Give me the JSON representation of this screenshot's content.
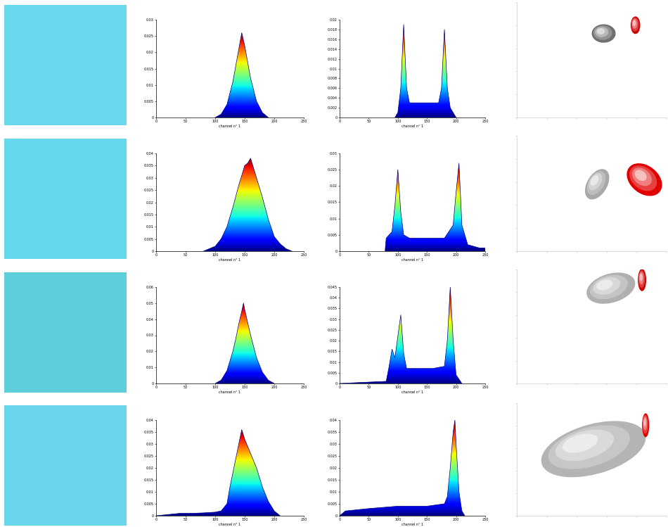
{
  "chart_data": [
    {
      "type": "image",
      "color": "#68d8ec"
    },
    {
      "type": "area",
      "x_label": "channel n° 1",
      "xlim": [
        0,
        250
      ],
      "xticks": [
        0,
        50,
        100,
        150,
        200,
        250
      ],
      "ylim": [
        0,
        0.03
      ],
      "yticks": [
        0,
        0.005,
        0.01,
        0.015,
        0.02,
        0.025,
        0.03
      ],
      "x": [
        100,
        110,
        120,
        130,
        135,
        140,
        145,
        150,
        155,
        160,
        170,
        180,
        190
      ],
      "values": [
        0,
        0.001,
        0.004,
        0.011,
        0.016,
        0.021,
        0.026,
        0.022,
        0.017,
        0.012,
        0.005,
        0.0015,
        0
      ]
    },
    {
      "type": "area",
      "x_label": "channel n° 1",
      "xlim": [
        0,
        250
      ],
      "xticks": [
        0,
        50,
        100,
        150,
        200,
        250
      ],
      "ylim": [
        0,
        0.02
      ],
      "yticks": [
        0,
        0.002,
        0.004,
        0.006,
        0.008,
        0.01,
        0.012,
        0.014,
        0.016,
        0.018,
        0.02
      ],
      "x": [
        95,
        100,
        105,
        110,
        115,
        120,
        130,
        140,
        150,
        160,
        170,
        175,
        180,
        185,
        190,
        200
      ],
      "values": [
        0,
        0.001,
        0.006,
        0.019,
        0.006,
        0.003,
        0.003,
        0.003,
        0.003,
        0.003,
        0.003,
        0.006,
        0.018,
        0.006,
        0.002,
        0
      ]
    },
    {
      "type": "ellipses",
      "xlim": [
        0,
        250
      ],
      "ylim": [
        0,
        250
      ],
      "xticks": [
        0,
        50,
        100,
        150,
        200,
        250
      ],
      "yticks": [
        0,
        50,
        100,
        150,
        200,
        250
      ],
      "tick_labels": false,
      "ellipses": [
        {
          "color": "#707070",
          "center": [
            145,
            182
          ],
          "width": 40,
          "height": 40,
          "angle": 30
        },
        {
          "color": "#d00000",
          "center": [
            198,
            200
          ],
          "width": 16,
          "height": 38,
          "angle": 0
        }
      ]
    },
    {
      "type": "image",
      "color": "#66d8ee"
    },
    {
      "type": "area",
      "x_label": "channel n° 1",
      "xlim": [
        0,
        250
      ],
      "xticks": [
        0,
        50,
        100,
        150,
        200,
        250
      ],
      "ylim": [
        0,
        0.04
      ],
      "yticks": [
        0,
        0.005,
        0.01,
        0.015,
        0.02,
        0.025,
        0.03,
        0.035,
        0.04
      ],
      "x": [
        80,
        90,
        100,
        110,
        120,
        130,
        140,
        150,
        155,
        160,
        165,
        170,
        180,
        190,
        200,
        210,
        220,
        230
      ],
      "values": [
        0,
        0.001,
        0.002,
        0.005,
        0.01,
        0.018,
        0.027,
        0.035,
        0.036,
        0.038,
        0.034,
        0.03,
        0.022,
        0.013,
        0.006,
        0.003,
        0.001,
        0
      ]
    },
    {
      "type": "area",
      "x_label": "channel n° 1",
      "xlim": [
        0,
        250
      ],
      "xticks": [
        0,
        50,
        100,
        150,
        200,
        250
      ],
      "ylim": [
        0,
        0.03
      ],
      "yticks": [
        0,
        0.005,
        0.01,
        0.015,
        0.02,
        0.025,
        0.03
      ],
      "x": [
        78,
        80,
        90,
        95,
        100,
        105,
        110,
        120,
        140,
        160,
        180,
        195,
        200,
        205,
        210,
        220,
        240,
        250
      ],
      "values": [
        0,
        0.004,
        0.006,
        0.014,
        0.025,
        0.012,
        0.005,
        0.004,
        0.004,
        0.004,
        0.004,
        0.008,
        0.018,
        0.027,
        0.008,
        0.002,
        0.001,
        0.001
      ]
    },
    {
      "type": "ellipses",
      "xlim": [
        0,
        250
      ],
      "ylim": [
        0,
        250
      ],
      "xticks": [
        0,
        50,
        100,
        150,
        200,
        250
      ],
      "yticks": [
        0,
        50,
        100,
        150,
        200,
        250
      ],
      "tick_labels": false,
      "ellipses": [
        {
          "color": "#a8a8a8",
          "center": [
            134,
            145
          ],
          "width": 35,
          "height": 69,
          "angle": -20
        },
        {
          "color": "#e00000",
          "center": [
            213,
            155
          ],
          "width": 52,
          "height": 76,
          "angle": 30
        }
      ]
    },
    {
      "type": "image",
      "color": "#5ccfdb"
    },
    {
      "type": "area",
      "x_label": "channel n° 1",
      "xlim": [
        0,
        250
      ],
      "xticks": [
        0,
        50,
        100,
        150,
        200,
        250
      ],
      "ylim": [
        0,
        0.06
      ],
      "yticks": [
        0,
        0.01,
        0.02,
        0.03,
        0.04,
        0.05,
        0.06
      ],
      "x": [
        100,
        110,
        120,
        130,
        135,
        140,
        145,
        148,
        150,
        155,
        160,
        170,
        180,
        190,
        200
      ],
      "values": [
        0,
        0.002,
        0.008,
        0.02,
        0.028,
        0.037,
        0.045,
        0.05,
        0.046,
        0.038,
        0.03,
        0.016,
        0.007,
        0.002,
        0
      ]
    },
    {
      "type": "area",
      "x_label": "channel n° 1",
      "xlim": [
        0,
        250
      ],
      "xticks": [
        0,
        50,
        100,
        150,
        200,
        250
      ],
      "ylim": [
        0,
        0.045
      ],
      "yticks": [
        0,
        0.005,
        0.01,
        0.015,
        0.02,
        0.025,
        0.03,
        0.035,
        0.04,
        0.045
      ],
      "x": [
        0,
        40,
        80,
        85,
        90,
        95,
        100,
        105,
        110,
        115,
        120,
        140,
        160,
        180,
        185,
        190,
        195,
        200,
        210
      ],
      "values": [
        0,
        0.0005,
        0.001,
        0.008,
        0.016,
        0.012,
        0.022,
        0.032,
        0.014,
        0.007,
        0.007,
        0.007,
        0.007,
        0.008,
        0.02,
        0.045,
        0.02,
        0.004,
        0
      ]
    },
    {
      "type": "ellipses",
      "xlim": [
        0,
        250
      ],
      "ylim": [
        0,
        250
      ],
      "xticks": [
        0,
        50,
        100,
        150,
        200,
        250
      ],
      "yticks": [
        0,
        50,
        100,
        150,
        200,
        250
      ],
      "tick_labels": false,
      "ellipses": [
        {
          "color": "#b0b0b0",
          "center": [
            157,
            209
          ],
          "width": 87,
          "height": 61,
          "angle": 30
        },
        {
          "color": "#d00000",
          "center": [
            209,
            227
          ],
          "width": 14,
          "height": 49,
          "angle": 0
        }
      ]
    },
    {
      "type": "image",
      "color": "#6ad6ec"
    },
    {
      "type": "area",
      "x_label": "channel n° 1",
      "xlim": [
        0,
        250
      ],
      "xticks": [
        0,
        50,
        100,
        150,
        200,
        250
      ],
      "ylim": [
        0,
        0.04
      ],
      "yticks": [
        0,
        0.005,
        0.01,
        0.015,
        0.02,
        0.025,
        0.03,
        0.035,
        0.04
      ],
      "x": [
        0,
        20,
        40,
        60,
        80,
        100,
        110,
        120,
        125,
        130,
        140,
        145,
        150,
        160,
        170,
        180,
        190,
        200,
        210
      ],
      "values": [
        0,
        0.0005,
        0.001,
        0.001,
        0.0012,
        0.0015,
        0.002,
        0.005,
        0.012,
        0.018,
        0.03,
        0.036,
        0.032,
        0.026,
        0.02,
        0.012,
        0.006,
        0.002,
        0
      ]
    },
    {
      "type": "area",
      "x_label": "channel n° 1",
      "xlim": [
        0,
        250
      ],
      "xticks": [
        0,
        50,
        100,
        150,
        200,
        250
      ],
      "ylim": [
        0,
        0.04
      ],
      "yticks": [
        0,
        0.005,
        0.01,
        0.015,
        0.02,
        0.025,
        0.03,
        0.035,
        0.04
      ],
      "x": [
        0,
        10,
        50,
        100,
        150,
        180,
        185,
        190,
        195,
        198,
        200,
        205,
        210,
        215
      ],
      "values": [
        0,
        0.002,
        0.003,
        0.004,
        0.004,
        0.005,
        0.008,
        0.02,
        0.035,
        0.04,
        0.03,
        0.01,
        0.002,
        0
      ]
    },
    {
      "type": "ellipses",
      "xlim": [
        0,
        250
      ],
      "ylim": [
        0,
        250
      ],
      "xticks": [
        0,
        50,
        100,
        150,
        200,
        250
      ],
      "yticks": [
        0,
        50,
        100,
        150,
        200,
        250
      ],
      "tick_labels": false,
      "ellipses": [
        {
          "color": "#b4b4b4",
          "center": [
            128,
            148
          ],
          "width": 186,
          "height": 107,
          "angle": 25
        },
        {
          "color": "#e00000",
          "center": [
            215,
            201
          ],
          "width": 12,
          "height": 53,
          "angle": 0
        }
      ]
    }
  ]
}
